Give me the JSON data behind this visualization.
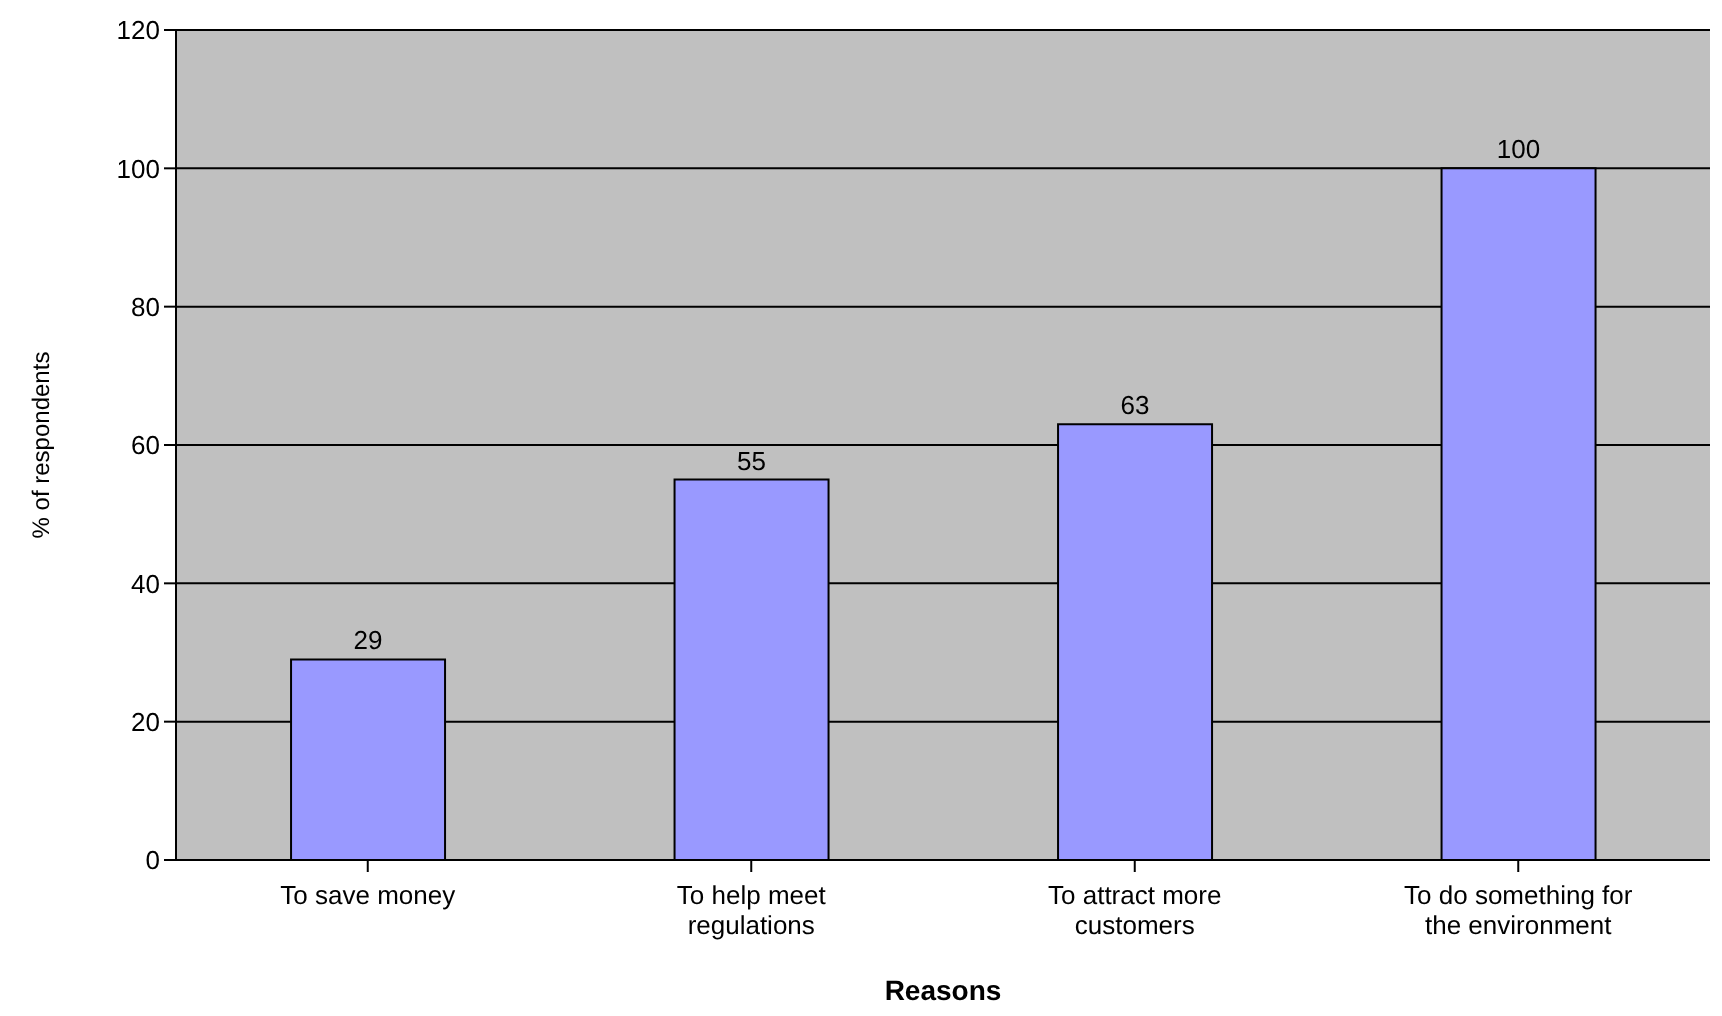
{
  "chart_data": {
    "type": "bar",
    "xlabel": "Reasons",
    "ylabel": "% of respondents",
    "categories": [
      "To save money",
      "To help meet regulations",
      "To attract more customers",
      "To do something for the environment"
    ],
    "values": [
      29,
      55,
      63,
      100
    ],
    "color": "#9999ff",
    "ylim": [
      0,
      120
    ],
    "yticks": [
      0,
      20,
      40,
      60,
      80,
      100,
      120
    ],
    "grid": "y",
    "data_labels": true
  }
}
